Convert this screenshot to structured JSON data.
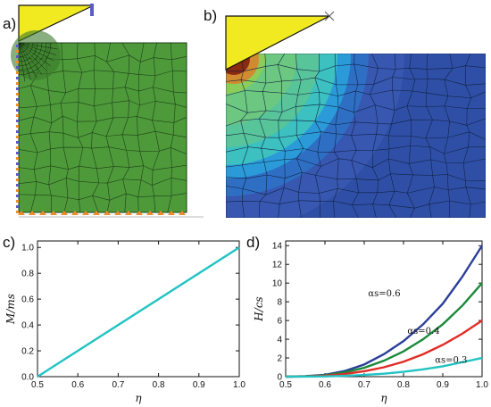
{
  "panels": {
    "a": "a)",
    "b": "b)",
    "c": "c)",
    "d": "d)"
  },
  "colors": {
    "mesh_green": "#4e9a3a",
    "indenter_yellow": "#f2ea21",
    "line_cyan": "#22c3c3",
    "line_blue": "#2b3f98",
    "line_green": "#1a8a3a",
    "line_red": "#e22b26",
    "bc_orange": "#f08a2a",
    "bc_blue": "#5a5ac8"
  },
  "chart_data": [
    {
      "type": "line",
      "panel": "c)",
      "xlabel": "η",
      "ylabel": "M/ms",
      "xlim": [
        0.5,
        1.0
      ],
      "ylim": [
        0.0,
        1.05
      ],
      "xticks": [
        "0.5",
        "0.6",
        "0.7",
        "0.8",
        "0.9",
        "1.0"
      ],
      "yticks": [
        "0.0",
        "0.2",
        "0.4",
        "0.6",
        "0.8",
        "1.0"
      ],
      "series": [
        {
          "color": "#22c3c3",
          "x": [
            0.5,
            1.0
          ],
          "y": [
            0.0,
            1.0
          ]
        }
      ]
    },
    {
      "type": "line",
      "panel": "d)",
      "xlabel": "η",
      "ylabel": "H/cs",
      "xlim": [
        0.5,
        1.0
      ],
      "ylim": [
        0,
        14.5
      ],
      "xticks": [
        "0.5",
        "0.6",
        "0.7",
        "0.8",
        "0.9",
        "1.0"
      ],
      "yticks": [
        "0",
        "2",
        "4",
        "6",
        "8",
        "10",
        "12",
        "14"
      ],
      "series": [
        {
          "color": "#2b3f98",
          "x": [
            0.5,
            0.55,
            0.6,
            0.65,
            0.7,
            0.75,
            0.8,
            0.85,
            0.9,
            0.95,
            1.0
          ],
          "y": [
            0,
            0.05,
            0.2,
            0.6,
            1.3,
            2.4,
            3.8,
            5.6,
            7.8,
            10.7,
            14.0
          ]
        },
        {
          "color": "#1a8a3a",
          "x": [
            0.5,
            0.55,
            0.6,
            0.65,
            0.7,
            0.75,
            0.8,
            0.85,
            0.9,
            0.95,
            1.0
          ],
          "y": [
            0,
            0.04,
            0.15,
            0.45,
            0.95,
            1.7,
            2.7,
            4.0,
            5.6,
            7.6,
            10.0
          ]
        },
        {
          "color": "#e22b26",
          "x": [
            0.5,
            0.55,
            0.6,
            0.65,
            0.7,
            0.75,
            0.8,
            0.85,
            0.9,
            0.95,
            1.0
          ],
          "y": [
            0,
            0.02,
            0.1,
            0.28,
            0.58,
            1.0,
            1.6,
            2.4,
            3.4,
            4.6,
            6.0
          ]
        },
        {
          "color": "#22c3c3",
          "x": [
            0.5,
            0.55,
            0.6,
            0.65,
            0.7,
            0.75,
            0.8,
            0.85,
            0.9,
            0.95,
            1.0
          ],
          "y": [
            0,
            0.01,
            0.03,
            0.09,
            0.18,
            0.32,
            0.52,
            0.78,
            1.1,
            1.55,
            2.0
          ]
        }
      ],
      "annotations": [
        {
          "text": "αs=0.6",
          "x": 0.71,
          "y": 8.6
        },
        {
          "text": "αs=0.4",
          "x": 0.81,
          "y": 4.6
        },
        {
          "text": "αs=0.3",
          "x": 0.88,
          "y": 1.5
        }
      ]
    }
  ]
}
